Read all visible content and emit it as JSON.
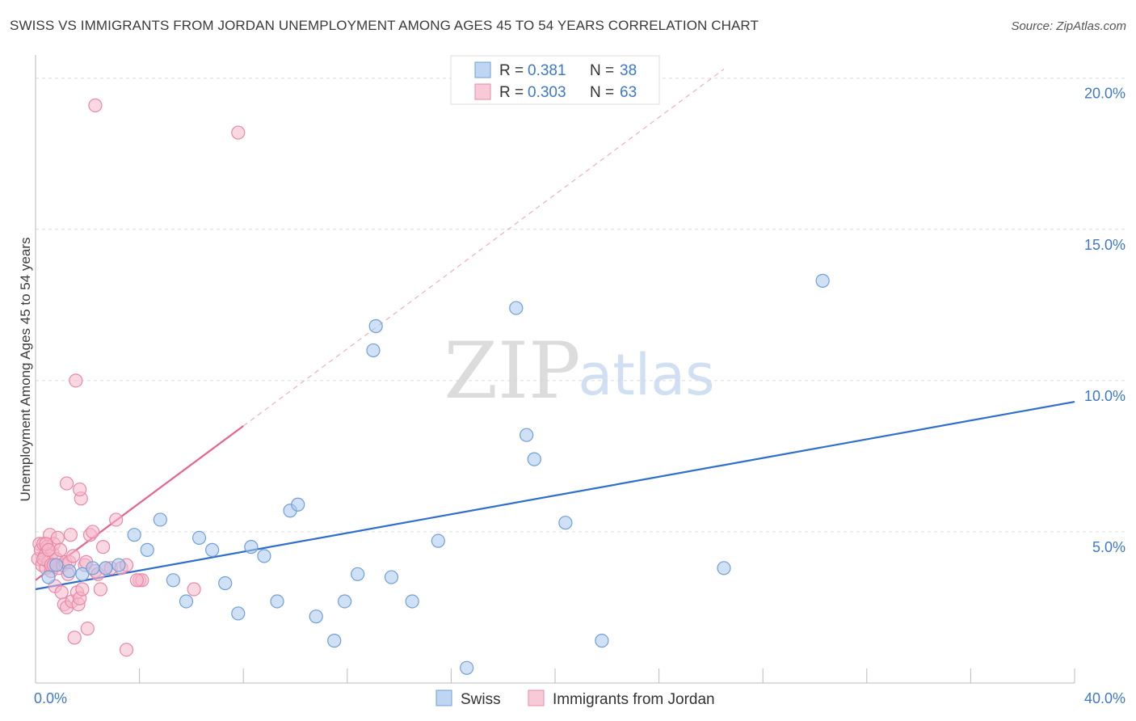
{
  "title": "SWISS VS IMMIGRANTS FROM JORDAN UNEMPLOYMENT AMONG AGES 45 TO 54 YEARS CORRELATION CHART",
  "source": "Source: ZipAtlas.com",
  "watermark": {
    "zip": "ZIP",
    "atlas": "atlas"
  },
  "colors": {
    "swiss_fill": "#a9c8ee",
    "swiss_stroke": "#6f9fd8",
    "swiss_line": "#2f6fcc",
    "jordan_fill": "#f5b8cb",
    "jordan_stroke": "#e888a8",
    "jordan_line": "#e8628e",
    "axis_label": "#3d78c9",
    "grid": "#dcdcdc"
  },
  "legend": {
    "rows": [
      {
        "series": "swiss",
        "r_label": "R =",
        "r_value": "0.381",
        "n_label": "N =",
        "n_value": "38"
      },
      {
        "series": "jordan",
        "r_label": "R =",
        "r_value": "0.303",
        "n_label": "N =",
        "n_value": "63"
      }
    ]
  },
  "chart_data": {
    "type": "scatter",
    "title": "SWISS VS IMMIGRANTS FROM JORDAN UNEMPLOYMENT AMONG AGES 45 TO 54 YEARS CORRELATION CHART",
    "xlabel": "",
    "ylabel": "Unemployment Among Ages 45 to 54 years",
    "xlim": [
      0,
      40
    ],
    "ylim": [
      0,
      20.5
    ],
    "x_tick_labels": [
      {
        "value": 0,
        "label": "0.0%"
      },
      {
        "value": 40,
        "label": "40.0%"
      }
    ],
    "y_tick_labels": [
      {
        "value": 5,
        "label": "5.0%"
      },
      {
        "value": 10,
        "label": "10.0%"
      },
      {
        "value": 15,
        "label": "15.0%"
      },
      {
        "value": 20,
        "label": "20.0%"
      }
    ],
    "legend_placement": "bottom-center",
    "series": [
      {
        "name": "Swiss",
        "key": "swiss",
        "r": 0.381,
        "n": 38,
        "trend": {
          "x": [
            0,
            40
          ],
          "y": [
            3.1,
            9.3
          ],
          "style": "solid"
        },
        "points": [
          [
            0.5,
            3.5
          ],
          [
            0.8,
            3.9
          ],
          [
            1.3,
            3.7
          ],
          [
            1.8,
            3.6
          ],
          [
            2.2,
            3.8
          ],
          [
            2.7,
            3.8
          ],
          [
            3.2,
            3.9
          ],
          [
            3.8,
            4.9
          ],
          [
            4.3,
            4.4
          ],
          [
            4.8,
            5.4
          ],
          [
            5.3,
            3.4
          ],
          [
            5.8,
            2.7
          ],
          [
            6.3,
            4.8
          ],
          [
            6.8,
            4.4
          ],
          [
            7.3,
            3.3
          ],
          [
            7.8,
            2.3
          ],
          [
            8.3,
            4.5
          ],
          [
            8.8,
            4.2
          ],
          [
            9.3,
            2.7
          ],
          [
            9.8,
            5.7
          ],
          [
            10.1,
            5.9
          ],
          [
            10.8,
            2.2
          ],
          [
            11.5,
            1.4
          ],
          [
            11.9,
            2.7
          ],
          [
            12.4,
            3.6
          ],
          [
            13.0,
            11.0
          ],
          [
            13.1,
            11.8
          ],
          [
            13.7,
            3.5
          ],
          [
            14.5,
            2.7
          ],
          [
            15.5,
            4.7
          ],
          [
            16.6,
            0.5
          ],
          [
            18.5,
            12.4
          ],
          [
            18.9,
            8.2
          ],
          [
            19.2,
            7.4
          ],
          [
            20.4,
            5.3
          ],
          [
            21.8,
            1.4
          ],
          [
            26.5,
            3.8
          ],
          [
            30.3,
            13.3
          ]
        ]
      },
      {
        "name": "Immigrants from Jordan",
        "key": "jordan",
        "r": 0.303,
        "n": 63,
        "trend": {
          "x": [
            0,
            8
          ],
          "y": [
            3.4,
            8.5
          ],
          "style": "solid",
          "dashed_extension": {
            "x": [
              8,
              26.5
            ],
            "y": [
              8.5,
              20.3
            ]
          }
        },
        "points": [
          [
            0.1,
            4.1
          ],
          [
            0.15,
            4.6
          ],
          [
            0.2,
            4.4
          ],
          [
            0.25,
            3.9
          ],
          [
            0.3,
            4.6
          ],
          [
            0.35,
            4.2
          ],
          [
            0.4,
            3.8
          ],
          [
            0.45,
            4.5
          ],
          [
            0.5,
            4.0
          ],
          [
            0.55,
            4.9
          ],
          [
            0.6,
            3.7
          ],
          [
            0.65,
            4.3
          ],
          [
            0.7,
            4.6
          ],
          [
            0.75,
            3.2
          ],
          [
            0.8,
            4.1
          ],
          [
            0.85,
            4.8
          ],
          [
            0.9,
            3.8
          ],
          [
            0.95,
            4.4
          ],
          [
            0.3,
            4.1
          ],
          [
            0.4,
            4.6
          ],
          [
            0.5,
            4.4
          ],
          [
            0.6,
            3.9
          ],
          [
            0.7,
            3.9
          ],
          [
            1.0,
            3.0
          ],
          [
            1.05,
            3.9
          ],
          [
            1.1,
            2.6
          ],
          [
            1.15,
            4.0
          ],
          [
            1.2,
            2.5
          ],
          [
            1.25,
            3.6
          ],
          [
            1.3,
            4.0
          ],
          [
            1.35,
            4.9
          ],
          [
            1.4,
            2.7
          ],
          [
            1.45,
            4.2
          ],
          [
            1.5,
            1.5
          ],
          [
            1.55,
            10.0
          ],
          [
            1.6,
            3.0
          ],
          [
            1.65,
            2.6
          ],
          [
            1.7,
            2.8
          ],
          [
            1.75,
            6.1
          ],
          [
            1.8,
            3.1
          ],
          [
            1.9,
            3.9
          ],
          [
            1.95,
            4.0
          ],
          [
            2.0,
            1.8
          ],
          [
            2.1,
            4.9
          ],
          [
            2.2,
            5.0
          ],
          [
            2.3,
            3.7
          ],
          [
            2.4,
            3.6
          ],
          [
            2.5,
            3.1
          ],
          [
            2.6,
            4.5
          ],
          [
            2.7,
            3.8
          ],
          [
            2.9,
            3.8
          ],
          [
            3.1,
            5.4
          ],
          [
            3.3,
            3.8
          ],
          [
            3.5,
            3.9
          ],
          [
            3.5,
            1.1
          ],
          [
            4.0,
            3.4
          ],
          [
            4.1,
            3.4
          ],
          [
            6.1,
            3.1
          ],
          [
            1.2,
            6.6
          ],
          [
            1.7,
            6.4
          ],
          [
            2.3,
            19.1
          ],
          [
            7.8,
            18.2
          ],
          [
            3.9,
            3.4
          ]
        ]
      }
    ]
  },
  "bottom_legend": [
    {
      "key": "swiss",
      "label": "Swiss"
    },
    {
      "key": "jordan",
      "label": "Immigrants from Jordan"
    }
  ]
}
